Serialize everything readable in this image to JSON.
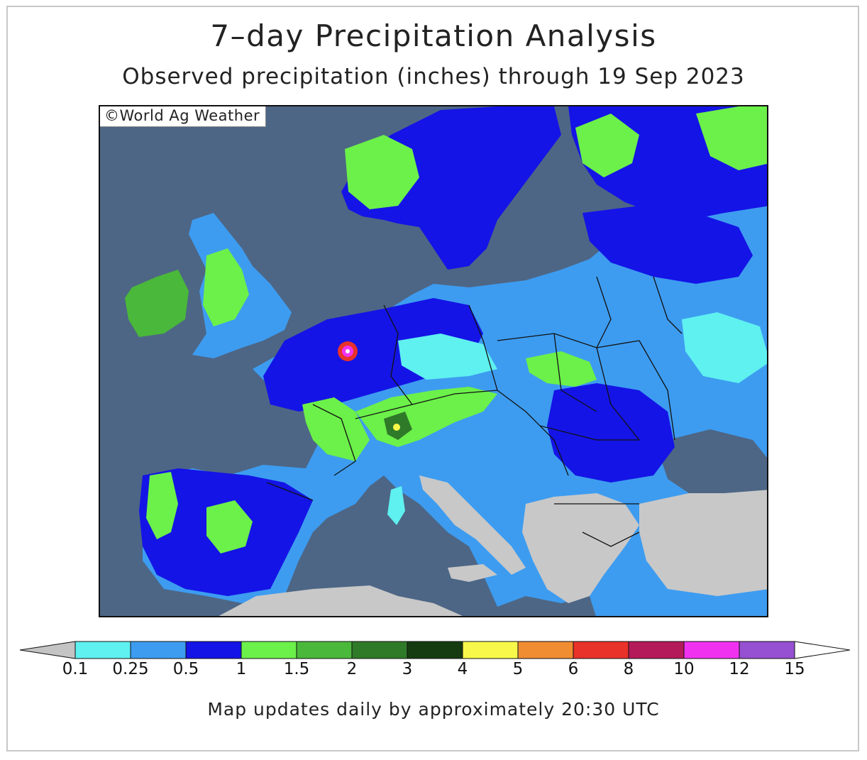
{
  "title": "7–day Precipitation Analysis",
  "subtitle": "Observed precipitation (inches) through 19 Sep 2023",
  "credit": "©World Ag Weather",
  "footer": "Map updates daily by approximately 20:30 UTC",
  "colors": {
    "ocean": "#4d6685",
    "dry_land": "#c8c8c8",
    "border": "#111111"
  },
  "legend": {
    "under_color": "#c4c4c4",
    "over_color": "#ffffff",
    "bins": [
      {
        "from": "0.1",
        "to": "0.25",
        "color": "#5ff0f0"
      },
      {
        "from": "0.25",
        "to": "0.5",
        "color": "#3d9cf0"
      },
      {
        "from": "0.5",
        "to": "1",
        "color": "#1414e6"
      },
      {
        "from": "1",
        "to": "1.5",
        "color": "#6cf04a"
      },
      {
        "from": "1.5",
        "to": "2",
        "color": "#4ab83a"
      },
      {
        "from": "2",
        "to": "3",
        "color": "#2f7a28"
      },
      {
        "from": "3",
        "to": "4",
        "color": "#143c10"
      },
      {
        "from": "4",
        "to": "5",
        "color": "#f8f84a"
      },
      {
        "from": "5",
        "to": "6",
        "color": "#f08c32"
      },
      {
        "from": "6",
        "to": "8",
        "color": "#e8322a"
      },
      {
        "from": "8",
        "to": "10",
        "color": "#b41a5a"
      },
      {
        "from": "10",
        "to": "12",
        "color": "#f032f0"
      },
      {
        "from": "12",
        "to": "15",
        "color": "#9650d2"
      }
    ],
    "tick_labels": [
      "0.1",
      "0.25",
      "0.5",
      "1",
      "1.5",
      "2",
      "3",
      "4",
      "5",
      "6",
      "8",
      "10",
      "12",
      "15"
    ]
  }
}
